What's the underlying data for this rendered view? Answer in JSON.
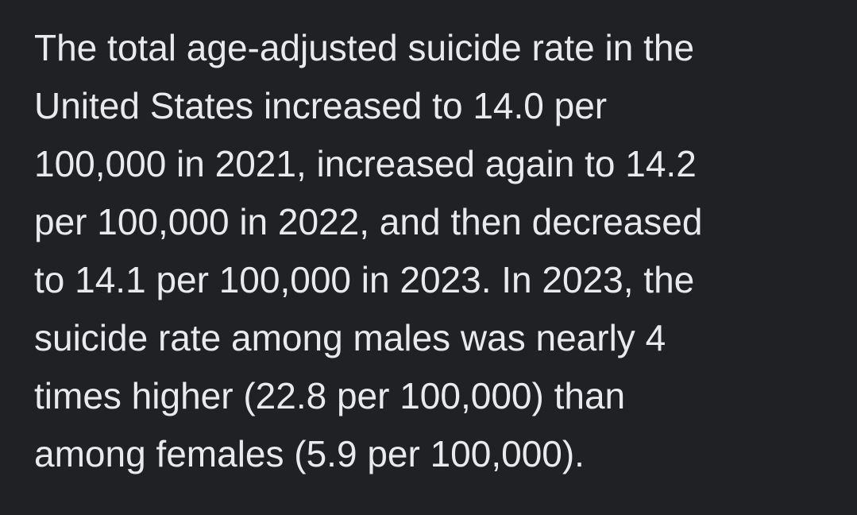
{
  "paragraph": {
    "lines": [
      "The total age-adjusted suicide rate in the",
      "United States increased to 14.0 per",
      "100,000 in 2021, increased again to 14.2",
      "per 100,000 in 2022, and then decreased",
      "to 14.1 per 100,000 in 2023. In 2023, the",
      "suicide rate among males was nearly 4",
      "times higher (22.8 per 100,000) than",
      "among females (5.9 per 100,000)."
    ]
  }
}
